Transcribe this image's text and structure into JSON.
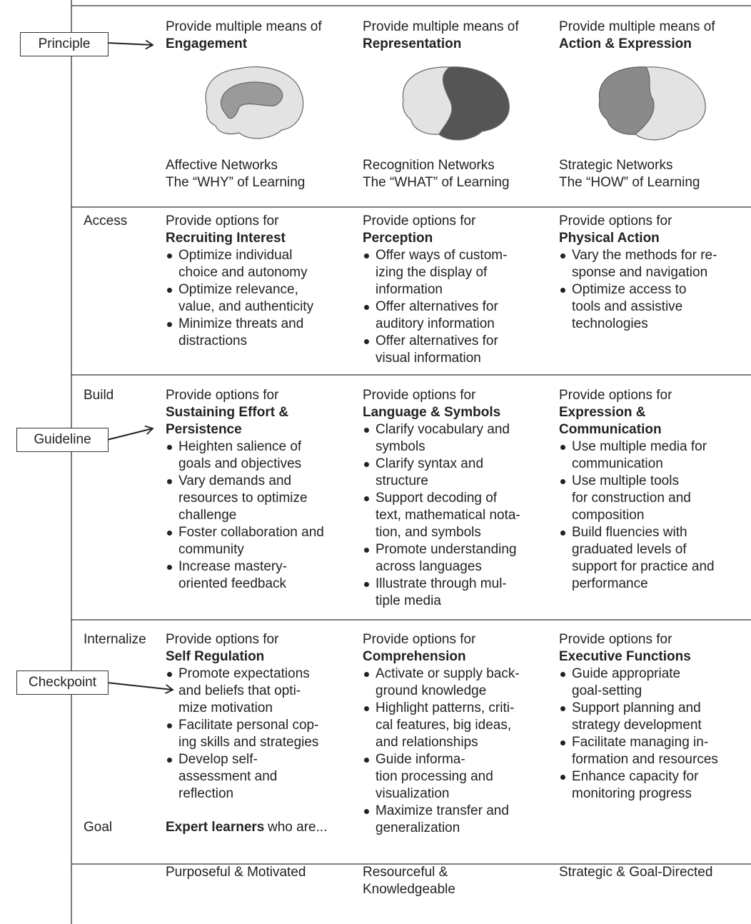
{
  "callouts": [
    "Principle",
    "Guideline",
    "Checkpoint"
  ],
  "principles": [
    {
      "intro": "Provide multiple means of",
      "name": "Engagement",
      "network": "Affective Networks",
      "role": "The “WHY” of Learning"
    },
    {
      "intro": "Provide multiple means of",
      "name": "Representation",
      "network": "Recognition Networks",
      "role": "The “WHAT” of Learning"
    },
    {
      "intro": "Provide multiple means of",
      "name": "Action & Expression",
      "network": "Strategic Networks",
      "role": "The “HOW” of Learning"
    }
  ],
  "rows": [
    {
      "label": "Access",
      "cells": [
        {
          "intro": "Provide options for",
          "title": [
            "Recruiting Interest"
          ],
          "bullets": [
            [
              "Optimize individual",
              "choice and autonomy"
            ],
            [
              "Optimize relevance,",
              "value, and authenticity"
            ],
            [
              "Minimize threats and",
              "distractions"
            ]
          ]
        },
        {
          "intro": "Provide options for",
          "title": [
            "Perception"
          ],
          "bullets": [
            [
              "Offer ways of custom-",
              "izing the display of",
              "information"
            ],
            [
              "Offer alternatives for",
              "auditory information"
            ],
            [
              "Offer alternatives for",
              "visual information"
            ]
          ]
        },
        {
          "intro": "Provide options for",
          "title": [
            "Physical Action"
          ],
          "bullets": [
            [
              "Vary the methods for re-",
              "sponse and navigation"
            ],
            [
              "Optimize access to",
              "tools and assistive",
              "technologies"
            ]
          ]
        }
      ]
    },
    {
      "label": "Build",
      "cells": [
        {
          "intro": "Provide options for",
          "title": [
            "Sustaining Effort &",
            "Persistence"
          ],
          "bullets": [
            [
              "Heighten salience of",
              "goals and objectives"
            ],
            [
              "Vary demands and",
              "resources to optimize",
              "challenge"
            ],
            [
              "Foster collaboration and",
              "community"
            ],
            [
              "Increase mastery-",
              "oriented feedback"
            ]
          ]
        },
        {
          "intro": "Provide options for",
          "title": [
            "Language & Symbols"
          ],
          "bullets": [
            [
              "Clarify vocabulary and",
              "symbols"
            ],
            [
              "Clarify syntax and",
              "structure"
            ],
            [
              "Support decoding of",
              "text, mathematical nota-",
              "tion, and symbols"
            ],
            [
              "Promote understanding",
              "across languages"
            ],
            [
              "Illustrate through mul-",
              "tiple media"
            ]
          ]
        },
        {
          "intro": "Provide options for",
          "title": [
            "Expression &",
            "Communication"
          ],
          "bullets": [
            [
              "Use multiple media for",
              "communication"
            ],
            [
              "Use multiple tools",
              "for construction and",
              "composition"
            ],
            [
              "Build fluencies with",
              "graduated levels of",
              "support for practice and",
              "performance"
            ]
          ]
        }
      ]
    },
    {
      "label": "Internalize",
      "cells": [
        {
          "intro": "Provide options for",
          "title": [
            "Self Regulation"
          ],
          "bullets": [
            [
              "Promote expectations",
              "and beliefs that opti-",
              "mize motivation"
            ],
            [
              "Facilitate personal cop-",
              "ing skills and strategies"
            ],
            [
              "Develop self-",
              "assessment and",
              "reflection"
            ]
          ]
        },
        {
          "intro": "Provide options for",
          "title": [
            "Comprehension"
          ],
          "bullets": [
            [
              "Activate or supply back-",
              "ground knowledge"
            ],
            [
              "Highlight patterns, criti-",
              "cal features, big ideas,",
              "and relationships"
            ],
            [
              "Guide informa-",
              "tion processing and",
              "visualization"
            ],
            [
              "Maximize transfer and",
              "generalization"
            ]
          ]
        },
        {
          "intro": "Provide options for",
          "title": [
            "Executive Functions"
          ],
          "bullets": [
            [
              "Guide appropriate",
              "goal-setting"
            ],
            [
              "Support planning and",
              "strategy development"
            ],
            [
              "Facilitate managing in-",
              "formation and resources"
            ],
            [
              "Enhance capacity for",
              "monitoring progress"
            ]
          ]
        }
      ]
    }
  ],
  "goal": {
    "label": "Goal",
    "lead": "Expert learners",
    "rest": "who are...",
    "outcomes": [
      [
        "Purposeful & Motivated"
      ],
      [
        "Resourceful &",
        "Knowledgeable"
      ],
      [
        "Strategic & Goal-Directed"
      ]
    ]
  }
}
